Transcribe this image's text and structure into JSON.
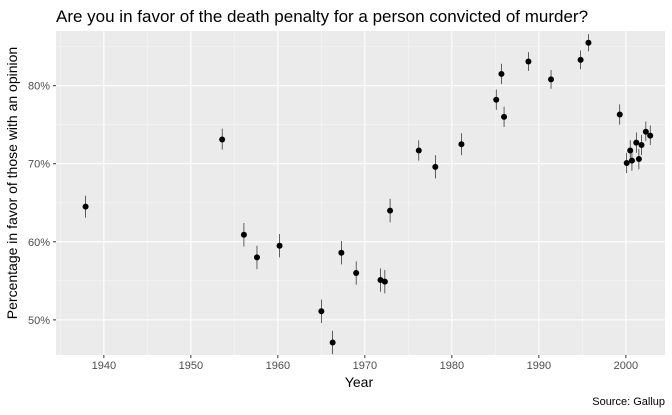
{
  "chart_data": {
    "type": "scatter",
    "title": "Are you in favor of the death penalty for a person convicted of murder?",
    "xlabel": "Year",
    "ylabel": "Percentage in favor of those with an opinion",
    "caption": "Source: Gallup",
    "xlim": [
      1934.5,
      2004.5
    ],
    "ylim": [
      45.5,
      87
    ],
    "xticks": [
      1940,
      1950,
      1960,
      1970,
      1980,
      1990,
      2000
    ],
    "yticks": [
      50,
      60,
      70,
      80
    ],
    "ytick_labels": [
      "50%",
      "60%",
      "70%",
      "80%"
    ],
    "grid": true,
    "error_bars": true,
    "points": [
      {
        "x": 1937.9,
        "y": 64.5,
        "lo": 63.1,
        "hi": 65.9
      },
      {
        "x": 1953.6,
        "y": 73.1,
        "lo": 71.8,
        "hi": 74.5
      },
      {
        "x": 1956.1,
        "y": 60.9,
        "lo": 59.4,
        "hi": 62.4
      },
      {
        "x": 1957.6,
        "y": 58.0,
        "lo": 56.5,
        "hi": 59.5
      },
      {
        "x": 1960.2,
        "y": 59.5,
        "lo": 58.0,
        "hi": 61.0
      },
      {
        "x": 1965.0,
        "y": 51.1,
        "lo": 49.6,
        "hi": 52.6
      },
      {
        "x": 1966.3,
        "y": 47.1,
        "lo": 45.6,
        "hi": 48.6
      },
      {
        "x": 1967.3,
        "y": 58.6,
        "lo": 57.1,
        "hi": 60.1
      },
      {
        "x": 1969.0,
        "y": 56.0,
        "lo": 54.5,
        "hi": 57.5
      },
      {
        "x": 1971.8,
        "y": 55.1,
        "lo": 53.6,
        "hi": 56.6
      },
      {
        "x": 1972.3,
        "y": 54.9,
        "lo": 53.4,
        "hi": 56.4
      },
      {
        "x": 1972.9,
        "y": 64.0,
        "lo": 62.5,
        "hi": 65.5
      },
      {
        "x": 1976.2,
        "y": 71.7,
        "lo": 70.4,
        "hi": 73.0
      },
      {
        "x": 1978.1,
        "y": 69.6,
        "lo": 68.1,
        "hi": 71.1
      },
      {
        "x": 1981.1,
        "y": 72.5,
        "lo": 71.1,
        "hi": 73.9
      },
      {
        "x": 1985.1,
        "y": 78.2,
        "lo": 76.9,
        "hi": 79.5
      },
      {
        "x": 1985.7,
        "y": 81.5,
        "lo": 80.2,
        "hi": 82.8
      },
      {
        "x": 1986.0,
        "y": 76.0,
        "lo": 74.7,
        "hi": 77.3
      },
      {
        "x": 1988.8,
        "y": 83.1,
        "lo": 81.9,
        "hi": 84.3
      },
      {
        "x": 1991.4,
        "y": 80.8,
        "lo": 79.6,
        "hi": 82.0
      },
      {
        "x": 1994.8,
        "y": 83.3,
        "lo": 82.1,
        "hi": 84.5
      },
      {
        "x": 1995.7,
        "y": 85.5,
        "lo": 84.4,
        "hi": 86.6
      },
      {
        "x": 1999.3,
        "y": 76.3,
        "lo": 75.0,
        "hi": 77.6
      },
      {
        "x": 2000.1,
        "y": 70.1,
        "lo": 68.8,
        "hi": 71.4
      },
      {
        "x": 2000.5,
        "y": 71.7,
        "lo": 70.4,
        "hi": 73.0
      },
      {
        "x": 2000.7,
        "y": 70.4,
        "lo": 69.1,
        "hi": 71.7
      },
      {
        "x": 2001.2,
        "y": 72.7,
        "lo": 71.4,
        "hi": 74.0
      },
      {
        "x": 2001.5,
        "y": 70.6,
        "lo": 69.3,
        "hi": 71.9
      },
      {
        "x": 2001.8,
        "y": 72.4,
        "lo": 71.1,
        "hi": 73.7
      },
      {
        "x": 2002.3,
        "y": 74.1,
        "lo": 72.9,
        "hi": 75.4
      },
      {
        "x": 2002.8,
        "y": 73.6,
        "lo": 72.4,
        "hi": 74.9
      }
    ]
  },
  "colors": {
    "panel_bg": "#ebebeb",
    "grid_major": "#ffffff",
    "grid_minor": "#f5f5f5",
    "point": "#000000",
    "error_bar": "#000000",
    "tick_text": "#4d4d4d",
    "tick_mark": "#333333"
  }
}
